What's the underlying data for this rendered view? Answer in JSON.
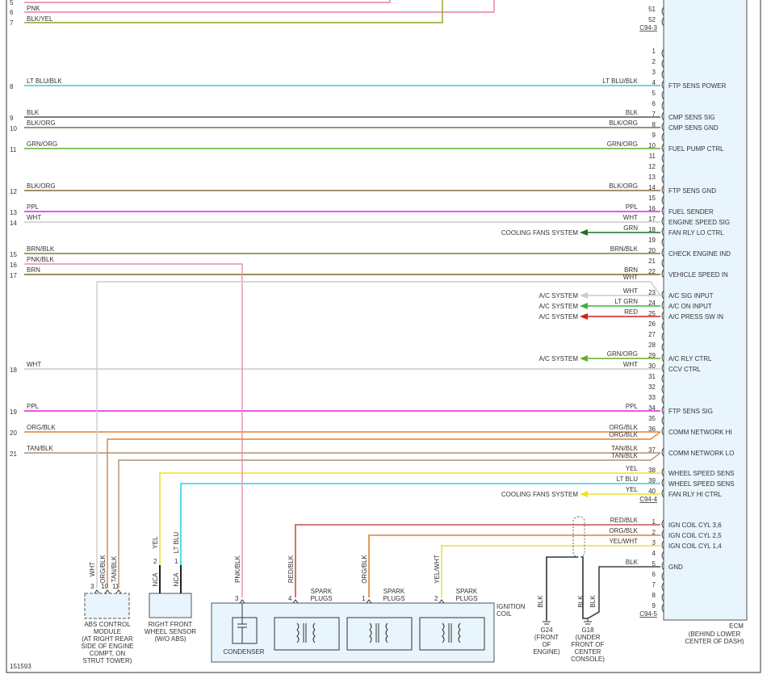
{
  "diagram_id": "151593",
  "top_rows": [
    {
      "num": "5",
      "color": "#e87fa0"
    },
    {
      "num": "6",
      "wire": "PNK",
      "color": "#e87fa0"
    },
    {
      "num": "7",
      "wire": "BLK/YEL",
      "color": "#9a9a30"
    }
  ],
  "extra_rows": [
    {
      "num": "16",
      "wire": "PNK/BLK",
      "color": "#e890b0"
    }
  ],
  "ecm": {
    "name": "ECM",
    "location": [
      "(BEHIND LOWER",
      "CENTER OF DASH)"
    ],
    "connectors": [
      {
        "id": "C94-3",
        "pins": [
          {
            "pin": "51"
          },
          {
            "pin": "52"
          }
        ]
      },
      {
        "id": "C94-4",
        "pins": [
          {
            "pin": "1"
          },
          {
            "pin": "2"
          },
          {
            "pin": "3"
          },
          {
            "pin": "4",
            "func": "FTP SENS POWER",
            "wire": "LT BLU/BLK",
            "color": "#40c8d0",
            "row": "8",
            "row_wire": "LT BLU/BLK"
          },
          {
            "pin": "5"
          },
          {
            "pin": "6"
          },
          {
            "pin": "7",
            "func": "CMP SENS SIG",
            "wire": "BLK",
            "color": "#555555",
            "row": "9",
            "row_wire": "BLK"
          },
          {
            "pin": "8",
            "func": "CMP SENS GND",
            "wire": "BLK/ORG",
            "color": "#8b6a40",
            "row": "10",
            "row_wire": "BLK/ORG"
          },
          {
            "pin": "9"
          },
          {
            "pin": "10",
            "func": "FUEL PUMP CTRL",
            "wire": "GRN/ORG",
            "color": "#60b030",
            "row": "11",
            "row_wire": "GRN/ORG"
          },
          {
            "pin": "11"
          },
          {
            "pin": "12"
          },
          {
            "pin": "13"
          },
          {
            "pin": "14",
            "func": "FTP SENS GND",
            "wire": "BLK/ORG",
            "color": "#8b6a40",
            "row": "12",
            "row_wire": "BLK/ORG"
          },
          {
            "pin": "15"
          },
          {
            "pin": "16",
            "func": "FUEL SENDER",
            "wire": "PPL",
            "color": "#e020e0",
            "row": "13",
            "row_wire": "PPL"
          },
          {
            "pin": "17",
            "func": "ENGINE SPEED SIG",
            "wire": "WHT",
            "color": "#cccccc",
            "row": "14",
            "row_wire": "WHT"
          },
          {
            "pin": "18",
            "func": "FAN RLY LO CTRL",
            "wire": "GRN",
            "color": "#207020",
            "dest": "COOLING FANS SYSTEM"
          },
          {
            "pin": "19"
          },
          {
            "pin": "20",
            "func": "CHECK ENGINE IND",
            "wire": "BRN/BLK",
            "color": "#8a7a30",
            "row": "15",
            "row_wire": "BRN/BLK"
          },
          {
            "pin": "21"
          },
          {
            "pin": "22",
            "func": "VEHICLE SPEED IN",
            "wire": "BRN",
            "color": "#7a6a20",
            "row": "17",
            "row_wire": "BRN"
          },
          {
            "pin": "23",
            "func": "A/C SIG INPUT",
            "wire": "WHT",
            "color": "#cccccc",
            "dest": "A/C SYSTEM"
          },
          {
            "pin": "24",
            "func": "A/C ON INPUT",
            "wire": "LT GRN",
            "color": "#40b040",
            "dest": "A/C SYSTEM"
          },
          {
            "pin": "25",
            "func": "A/C PRESS SW IN",
            "wire": "RED",
            "color": "#d02020",
            "dest": "A/C SYSTEM"
          },
          {
            "pin": "26"
          },
          {
            "pin": "27"
          },
          {
            "pin": "28"
          },
          {
            "pin": "29",
            "func": "A/C RLY CTRL",
            "wire": "GRN/ORG",
            "color": "#60b030",
            "dest": "A/C SYSTEM"
          },
          {
            "pin": "30",
            "func": "CCV CTRL",
            "wire": "WHT",
            "color": "#cccccc",
            "row": "18",
            "row_wire": "WHT"
          },
          {
            "pin": "31"
          },
          {
            "pin": "32"
          },
          {
            "pin": "33"
          },
          {
            "pin": "34",
            "func": "FTP SENS SIG",
            "wire": "PPL",
            "color": "#e020e0",
            "row": "19",
            "row_wire": "PPL"
          },
          {
            "pin": "35"
          },
          {
            "pin": "36",
            "func": "COMM NETWORK HI",
            "wire": "ORG/BLK",
            "color": "#e08030",
            "row": "20",
            "row_wire": "ORG/BLK"
          },
          {
            "pin": "37",
            "func": "COMM NETWORK LO",
            "wire": "TAN/BLK",
            "color": "#b09070",
            "row": "21",
            "row_wire": "TAN/BLK"
          },
          {
            "pin": "38",
            "func": "WHEEL SPEED SENS",
            "wire": "YEL",
            "color": "#f0e020"
          },
          {
            "pin": "39",
            "func": "WHEEL SPEED SENS",
            "wire": "LT BLU",
            "color": "#30d0e0"
          },
          {
            "pin": "40",
            "func": "FAN RLY HI CTRL",
            "wire": "YEL",
            "color": "#f0e020",
            "dest": "COOLING FANS SYSTEM"
          }
        ]
      },
      {
        "id": "C94-5",
        "pins": [
          {
            "pin": "1",
            "func": "IGN COIL CYL 3,6",
            "wire": "RED/BLK",
            "color": "#c05050"
          },
          {
            "pin": "2",
            "func": "IGN COIL CYL 2,5",
            "wire": "ORG/BLK",
            "color": "#e08030"
          },
          {
            "pin": "3",
            "func": "IGN COIL CYL 1,4",
            "wire": "YEL/WHT",
            "color": "#e8e040"
          },
          {
            "pin": "4"
          },
          {
            "pin": "5",
            "func": "GND",
            "wire": "BLK",
            "color": "#444444"
          },
          {
            "pin": "6"
          },
          {
            "pin": "7"
          },
          {
            "pin": "8"
          },
          {
            "pin": "9"
          }
        ]
      }
    ]
  },
  "splices": [
    {
      "wire": "WHT",
      "color": "#cccccc"
    },
    {
      "wire": "ORG/BLK",
      "color": "#e08030"
    },
    {
      "wire": "TAN/BLK",
      "color": "#b09070"
    }
  ],
  "abs": {
    "pins": [
      "3",
      "10",
      "11"
    ],
    "wires": [
      "WHT",
      "ORG/BLK",
      "TAN/BLK"
    ],
    "label": [
      "ABS CONTROL",
      "MODULE",
      "(AT RIGHT REAR",
      "SIDE OF ENGINE",
      "COMPT, ON",
      "STRUT TOWER)"
    ]
  },
  "sensor": {
    "pins": [
      "2",
      "1"
    ],
    "wires": [
      "YEL",
      "LT BLU"
    ],
    "nca": [
      "NCA",
      "NCA"
    ],
    "label": [
      "RIGHT FRONT",
      "WHEEL SENSOR",
      "(W/O ABS)"
    ]
  },
  "coil": {
    "pins": [
      "3",
      "4",
      "1",
      "2"
    ],
    "wires": [
      "PNK/BLK",
      "RED/BLK",
      "ORG/BLK",
      "YEL/WHT"
    ],
    "spark": [
      "SPARK",
      "PLUGS"
    ],
    "condenser": "CONDENSER",
    "label": [
      "IGNITION",
      "COIL"
    ]
  },
  "grounds": [
    {
      "wires": [
        "BLK"
      ],
      "label": [
        "G24",
        "(FRONT",
        "OF",
        "ENGINE)"
      ]
    },
    {
      "wires": [
        "BLK",
        "BLK"
      ],
      "label": [
        "G18",
        "(UNDER",
        "FRONT OF",
        "CENTER",
        "CONSOLE)"
      ]
    }
  ]
}
